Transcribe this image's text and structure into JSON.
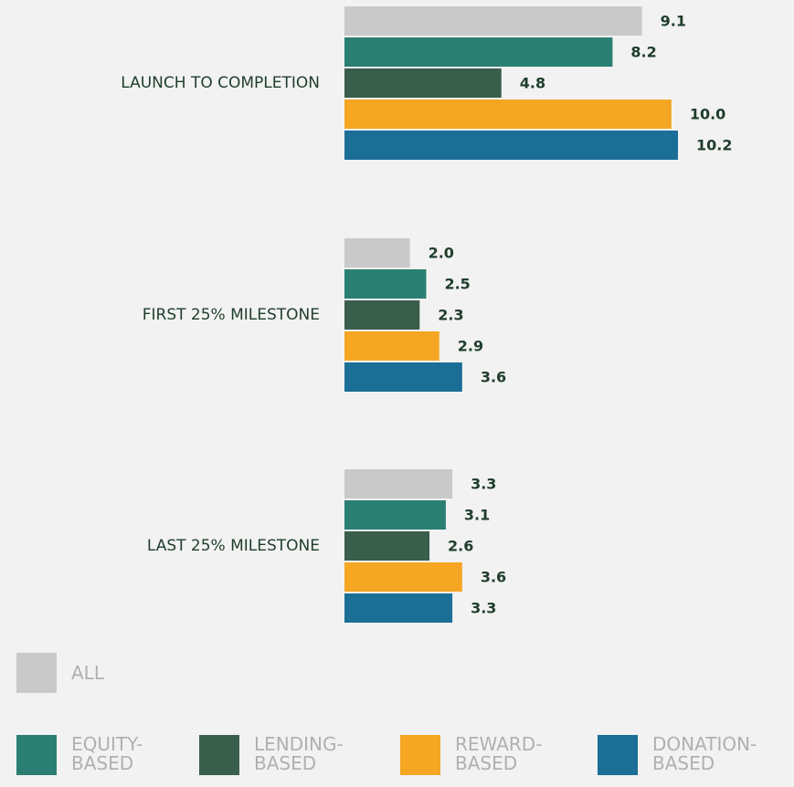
{
  "chart_data": {
    "type": "bar",
    "orientation": "horizontal",
    "categories": [
      "LAUNCH TO COMPLETION",
      "FIRST 25% MILESTONE",
      "LAST 25% MILESTONE"
    ],
    "series": [
      {
        "name": "ALL",
        "color": "#c9c9c9",
        "values": [
          9.1,
          2.0,
          3.3
        ],
        "value_labels": [
          "9.1",
          "2.0",
          "3.3"
        ]
      },
      {
        "name": "EQUITY-BASED",
        "color": "#2a7f72",
        "values": [
          8.2,
          2.5,
          3.1
        ],
        "value_labels": [
          "8.2",
          "2.5",
          "3.1"
        ]
      },
      {
        "name": "LENDING-BASED",
        "color": "#3a5e4c",
        "values": [
          4.8,
          2.3,
          2.6
        ],
        "value_labels": [
          "4.8",
          "2.3",
          "2.6"
        ]
      },
      {
        "name": "REWARD-BASED",
        "color": "#f5a623",
        "values": [
          10.0,
          2.9,
          3.6
        ],
        "value_labels": [
          "10.0",
          "2.9",
          "3.6"
        ]
      },
      {
        "name": "DONATION-BASED",
        "color": "#1b6e96",
        "values": [
          10.2,
          3.6,
          3.3
        ],
        "value_labels": [
          "10.2",
          "3.6",
          "3.3"
        ]
      }
    ]
  }
}
